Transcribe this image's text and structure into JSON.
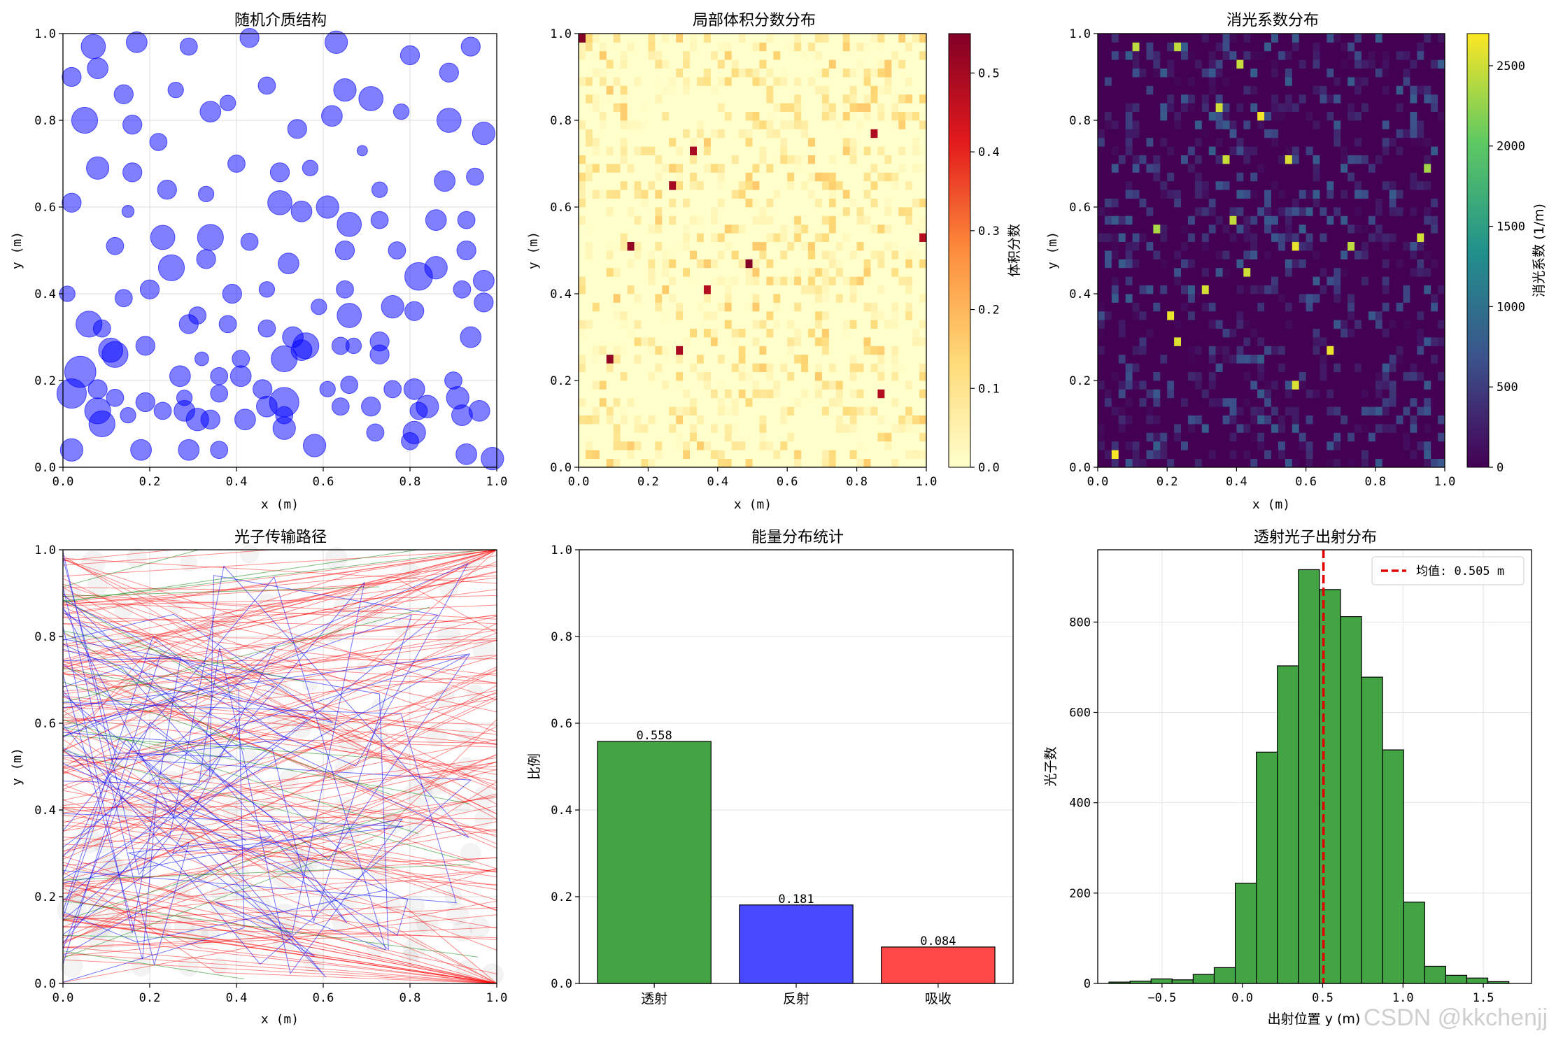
{
  "watermark": "CSDN @kkchenjj",
  "chart_data": [
    {
      "id": "medium",
      "type": "scatter",
      "title": "随机介质结构",
      "xlabel": "x (m)",
      "ylabel": "y (m)",
      "xlim": [
        0,
        1
      ],
      "ylim": [
        0,
        1
      ],
      "xticks": [
        "0.0",
        "0.2",
        "0.4",
        "0.6",
        "0.8",
        "1.0"
      ],
      "yticks": [
        "0.0",
        "0.2",
        "0.4",
        "0.6",
        "0.8",
        "1.0"
      ],
      "grid": true,
      "color": "#0000ff",
      "particles": [
        [
          0.07,
          0.97,
          0.028
        ],
        [
          0.17,
          0.98,
          0.024
        ],
        [
          0.29,
          0.97,
          0.02
        ],
        [
          0.43,
          0.99,
          0.022
        ],
        [
          0.63,
          0.98,
          0.026
        ],
        [
          0.8,
          0.95,
          0.022
        ],
        [
          0.94,
          0.97,
          0.022
        ],
        [
          0.02,
          0.9,
          0.022
        ],
        [
          0.08,
          0.92,
          0.024
        ],
        [
          0.14,
          0.86,
          0.022
        ],
        [
          0.26,
          0.87,
          0.018
        ],
        [
          0.38,
          0.84,
          0.018
        ],
        [
          0.47,
          0.88,
          0.02
        ],
        [
          0.65,
          0.87,
          0.026
        ],
        [
          0.71,
          0.85,
          0.028
        ],
        [
          0.89,
          0.91,
          0.022
        ],
        [
          0.05,
          0.8,
          0.03
        ],
        [
          0.16,
          0.79,
          0.022
        ],
        [
          0.22,
          0.75,
          0.02
        ],
        [
          0.34,
          0.82,
          0.024
        ],
        [
          0.54,
          0.78,
          0.022
        ],
        [
          0.62,
          0.81,
          0.024
        ],
        [
          0.78,
          0.82,
          0.018
        ],
        [
          0.89,
          0.8,
          0.028
        ],
        [
          0.97,
          0.77,
          0.026
        ],
        [
          0.08,
          0.69,
          0.026
        ],
        [
          0.16,
          0.68,
          0.022
        ],
        [
          0.24,
          0.64,
          0.022
        ],
        [
          0.33,
          0.63,
          0.018
        ],
        [
          0.4,
          0.7,
          0.02
        ],
        [
          0.5,
          0.68,
          0.022
        ],
        [
          0.57,
          0.69,
          0.018
        ],
        [
          0.69,
          0.73,
          0.012
        ],
        [
          0.73,
          0.64,
          0.018
        ],
        [
          0.88,
          0.66,
          0.024
        ],
        [
          0.95,
          0.67,
          0.02
        ],
        [
          0.02,
          0.61,
          0.022
        ],
        [
          0.15,
          0.59,
          0.014
        ],
        [
          0.23,
          0.53,
          0.028
        ],
        [
          0.34,
          0.53,
          0.03
        ],
        [
          0.5,
          0.61,
          0.028
        ],
        [
          0.55,
          0.59,
          0.024
        ],
        [
          0.61,
          0.6,
          0.026
        ],
        [
          0.66,
          0.56,
          0.028
        ],
        [
          0.73,
          0.57,
          0.02
        ],
        [
          0.86,
          0.57,
          0.024
        ],
        [
          0.93,
          0.57,
          0.02
        ],
        [
          0.12,
          0.51,
          0.02
        ],
        [
          0.25,
          0.46,
          0.03
        ],
        [
          0.33,
          0.48,
          0.022
        ],
        [
          0.43,
          0.52,
          0.02
        ],
        [
          0.52,
          0.47,
          0.024
        ],
        [
          0.65,
          0.5,
          0.022
        ],
        [
          0.77,
          0.5,
          0.02
        ],
        [
          0.82,
          0.44,
          0.032
        ],
        [
          0.86,
          0.46,
          0.026
        ],
        [
          0.93,
          0.5,
          0.022
        ],
        [
          0.97,
          0.43,
          0.024
        ],
        [
          0.01,
          0.4,
          0.018
        ],
        [
          0.14,
          0.39,
          0.02
        ],
        [
          0.2,
          0.41,
          0.022
        ],
        [
          0.31,
          0.35,
          0.02
        ],
        [
          0.39,
          0.4,
          0.022
        ],
        [
          0.47,
          0.41,
          0.018
        ],
        [
          0.59,
          0.37,
          0.018
        ],
        [
          0.65,
          0.41,
          0.02
        ],
        [
          0.66,
          0.35,
          0.028
        ],
        [
          0.76,
          0.37,
          0.026
        ],
        [
          0.81,
          0.36,
          0.022
        ],
        [
          0.92,
          0.41,
          0.02
        ],
        [
          0.97,
          0.38,
          0.022
        ],
        [
          0.06,
          0.33,
          0.03
        ],
        [
          0.09,
          0.32,
          0.02
        ],
        [
          0.29,
          0.33,
          0.022
        ],
        [
          0.38,
          0.33,
          0.02
        ],
        [
          0.47,
          0.32,
          0.02
        ],
        [
          0.53,
          0.3,
          0.024
        ],
        [
          0.11,
          0.27,
          0.028
        ],
        [
          0.12,
          0.26,
          0.03
        ],
        [
          0.19,
          0.28,
          0.022
        ],
        [
          0.32,
          0.25,
          0.016
        ],
        [
          0.41,
          0.25,
          0.02
        ],
        [
          0.51,
          0.25,
          0.03
        ],
        [
          0.55,
          0.27,
          0.024
        ],
        [
          0.56,
          0.28,
          0.03
        ],
        [
          0.64,
          0.28,
          0.02
        ],
        [
          0.67,
          0.28,
          0.018
        ],
        [
          0.73,
          0.29,
          0.022
        ],
        [
          0.73,
          0.26,
          0.022
        ],
        [
          0.94,
          0.3,
          0.024
        ],
        [
          0.04,
          0.22,
          0.036
        ],
        [
          0.08,
          0.18,
          0.022
        ],
        [
          0.27,
          0.21,
          0.024
        ],
        [
          0.36,
          0.21,
          0.02
        ],
        [
          0.41,
          0.21,
          0.024
        ],
        [
          0.46,
          0.18,
          0.022
        ],
        [
          0.02,
          0.17,
          0.034
        ],
        [
          0.12,
          0.16,
          0.02
        ],
        [
          0.19,
          0.15,
          0.022
        ],
        [
          0.28,
          0.16,
          0.018
        ],
        [
          0.36,
          0.17,
          0.02
        ],
        [
          0.47,
          0.14,
          0.024
        ],
        [
          0.51,
          0.15,
          0.034
        ],
        [
          0.61,
          0.18,
          0.018
        ],
        [
          0.66,
          0.19,
          0.02
        ],
        [
          0.76,
          0.18,
          0.02
        ],
        [
          0.81,
          0.18,
          0.024
        ],
        [
          0.9,
          0.2,
          0.02
        ],
        [
          0.91,
          0.16,
          0.026
        ],
        [
          0.08,
          0.13,
          0.03
        ],
        [
          0.09,
          0.1,
          0.03
        ],
        [
          0.15,
          0.12,
          0.018
        ],
        [
          0.23,
          0.13,
          0.02
        ],
        [
          0.28,
          0.13,
          0.024
        ],
        [
          0.31,
          0.11,
          0.026
        ],
        [
          0.34,
          0.11,
          0.022
        ],
        [
          0.42,
          0.11,
          0.024
        ],
        [
          0.51,
          0.12,
          0.02
        ],
        [
          0.64,
          0.14,
          0.02
        ],
        [
          0.71,
          0.14,
          0.022
        ],
        [
          0.82,
          0.13,
          0.02
        ],
        [
          0.84,
          0.14,
          0.026
        ],
        [
          0.92,
          0.12,
          0.024
        ],
        [
          0.96,
          0.13,
          0.024
        ],
        [
          0.02,
          0.04,
          0.026
        ],
        [
          0.18,
          0.04,
          0.024
        ],
        [
          0.29,
          0.04,
          0.024
        ],
        [
          0.36,
          0.04,
          0.02
        ],
        [
          0.51,
          0.09,
          0.026
        ],
        [
          0.58,
          0.05,
          0.026
        ],
        [
          0.72,
          0.08,
          0.02
        ],
        [
          0.81,
          0.08,
          0.026
        ],
        [
          0.8,
          0.06,
          0.02
        ],
        [
          0.93,
          0.03,
          0.024
        ],
        [
          0.99,
          0.02,
          0.026
        ]
      ]
    },
    {
      "id": "volfrac",
      "type": "heatmap",
      "title": "局部体积分数分布",
      "xlabel": "x (m)",
      "ylabel": "y (m)",
      "xlim": [
        0,
        1
      ],
      "ylim": [
        0,
        1
      ],
      "xticks": [
        "0.0",
        "0.2",
        "0.4",
        "0.6",
        "0.8",
        "1.0"
      ],
      "yticks": [
        "0.0",
        "0.2",
        "0.4",
        "0.6",
        "0.8",
        "1.0"
      ],
      "grid_size": 50,
      "colormap": "YlOrRd",
      "clim": [
        0,
        0.55
      ],
      "colorbar_label": "体积分数",
      "colorbar_ticks": [
        "0.0",
        "0.1",
        "0.2",
        "0.3",
        "0.4",
        "0.5"
      ],
      "seed": 7
    },
    {
      "id": "extinction",
      "type": "heatmap",
      "title": "消光系数分布",
      "xlabel": "x (m)",
      "ylabel": "y (m)",
      "xlim": [
        0,
        1
      ],
      "ylim": [
        0,
        1
      ],
      "xticks": [
        "0.0",
        "0.2",
        "0.4",
        "0.6",
        "0.8",
        "1.0"
      ],
      "yticks": [
        "0.0",
        "0.2",
        "0.4",
        "0.6",
        "0.8",
        "1.0"
      ],
      "grid_size": 50,
      "colormap": "viridis",
      "clim": [
        0,
        2700
      ],
      "colorbar_label": "消光系数 (1/m)",
      "colorbar_ticks": [
        "0",
        "500",
        "1000",
        "1500",
        "2000",
        "2500"
      ],
      "seed": 11
    },
    {
      "id": "paths",
      "type": "line",
      "title": "光子传输路径",
      "xlabel": "x (m)",
      "ylabel": "y (m)",
      "xlim": [
        0,
        1
      ],
      "ylim": [
        0,
        1
      ],
      "xticks": [
        "0.0",
        "0.2",
        "0.4",
        "0.6",
        "0.8",
        "1.0"
      ],
      "yticks": [
        "0.0",
        "0.2",
        "0.4",
        "0.6",
        "0.8",
        "1.0"
      ],
      "grid": true,
      "path_colors": {
        "transmitted": "#ff0000",
        "reflected": "#0000ff",
        "absorbed": "#008000"
      },
      "seed": 5
    },
    {
      "id": "energy",
      "type": "bar",
      "title": "能量分布统计",
      "ylabel": "比例",
      "categories": [
        "透射",
        "反射",
        "吸收"
      ],
      "values": [
        0.558,
        0.181,
        0.084
      ],
      "value_labels": [
        "0.558",
        "0.181",
        "0.084"
      ],
      "colors": [
        "#2e9a2e",
        "#3434ff",
        "#ff3434"
      ],
      "ylim": [
        0,
        1
      ],
      "yticks": [
        "0.0",
        "0.2",
        "0.4",
        "0.6",
        "0.8",
        "1.0"
      ],
      "grid": "y"
    },
    {
      "id": "hist",
      "type": "bar",
      "title": "透射光子出射分布",
      "xlabel": "出射位置 y (m)",
      "ylabel": "光子数",
      "bin_edges_start": -0.83,
      "bin_width": 0.131,
      "counts": [
        3,
        5,
        10,
        8,
        20,
        35,
        222,
        512,
        703,
        916,
        872,
        812,
        678,
        517,
        180,
        38,
        18,
        12,
        4
      ],
      "xlim": [
        -0.9,
        1.8
      ],
      "ylim": [
        0,
        960
      ],
      "xtick_values": [
        -0.5,
        0.0,
        0.5,
        1.0,
        1.5
      ],
      "xticks": [
        "−0.5",
        "0.0",
        "0.5",
        "1.0",
        "1.5"
      ],
      "ytick_values": [
        0,
        200,
        400,
        600,
        800
      ],
      "yticks": [
        "0",
        "200",
        "400",
        "600",
        "800"
      ],
      "mean": 0.505,
      "legend": "均值: 0.505 m",
      "color": "#2e9a2e",
      "mean_color": "#e00000"
    }
  ]
}
